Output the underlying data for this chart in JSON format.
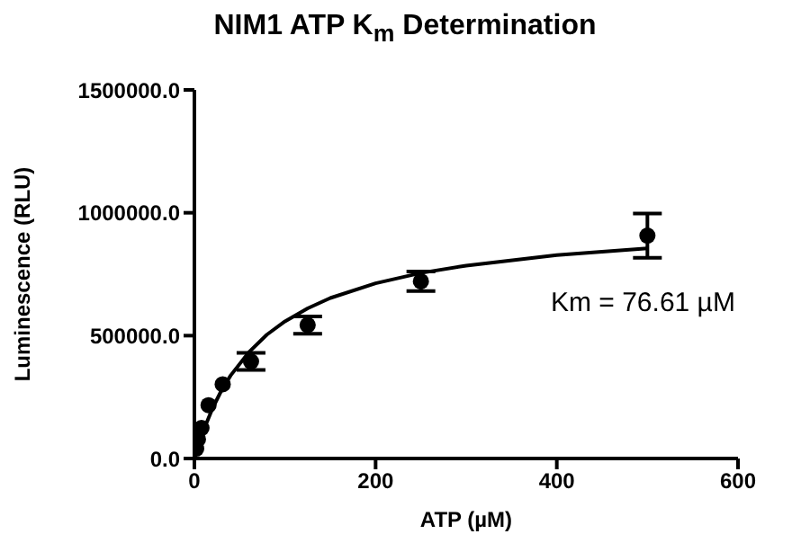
{
  "chart_data": {
    "type": "scatter",
    "title": "NIM1 ATP K$_{m}$ Determination",
    "xlabel": "ATP (µM)",
    "ylabel": "Luminescence (RLU)",
    "xlim": [
      0,
      600
    ],
    "xticks": [
      0,
      200,
      400,
      600
    ],
    "ylim": [
      0,
      1500000
    ],
    "yticks": [
      {
        "value": 0,
        "label": "0.0"
      },
      {
        "value": 500000,
        "label": "500000.0"
      },
      {
        "value": 1000000,
        "label": "1000000.0"
      },
      {
        "value": 1500000,
        "label": "1500000.0"
      }
    ],
    "marker": "circle",
    "annotations": [
      "Km = 76.61 µM"
    ],
    "series": [
      {
        "color": "#000000",
        "x": [
          1.95,
          3.9,
          7.8,
          15.6,
          31.25,
          62.5,
          125,
          250,
          500
        ],
        "values": [
          40000,
          78000,
          124000,
          217000,
          302000,
          395000,
          543000,
          721000,
          907000
        ],
        "errors": [
          null,
          null,
          null,
          null,
          null,
          35000,
          35000,
          40000,
          90000
        ]
      },
      {
        "type": "line",
        "color": "#000000",
        "marker": "none",
        "line_style": "solid",
        "x": [
          0,
          5,
          10,
          20,
          30,
          40,
          60,
          80,
          100,
          125,
          150,
          200,
          250,
          300,
          400,
          500
        ],
        "values": [
          0,
          60000,
          114000,
          204000,
          278000,
          338000,
          432000,
          504000,
          558000,
          611000,
          653000,
          713000,
          755000,
          785000,
          828000,
          855000
        ]
      }
    ]
  }
}
